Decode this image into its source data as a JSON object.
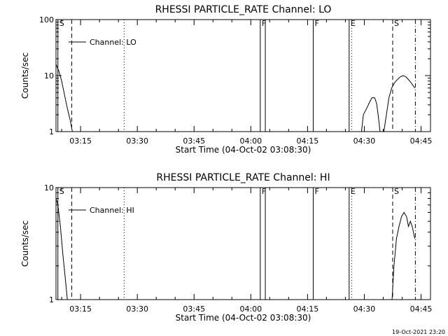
{
  "footer": {
    "timestamp": "19-Oct-2021 23:20"
  },
  "chart_data": [
    {
      "type": "line",
      "title": "RHESSI PARTICLE_RATE Channel: LO",
      "xlabel": "Start Time (04-Oct-02 03:08:30)",
      "ylabel": "Counts/sec",
      "y_scale": "log",
      "ylim": [
        1,
        100
      ],
      "y_ticks": [
        1,
        10,
        100
      ],
      "y_tick_labels": [
        "1",
        "10",
        "100"
      ],
      "xlim": [
        "03:08:30",
        "04:47:30"
      ],
      "x_ticks": [
        "03:15",
        "03:30",
        "03:45",
        "04:00",
        "04:15",
        "04:30",
        "04:45"
      ],
      "legend": {
        "label": "Channel: LO",
        "placement": "top-left"
      },
      "grid": false,
      "markers": [
        {
          "label": "S",
          "time": "03:09:00",
          "style": "solid"
        },
        {
          "label": "",
          "time": "03:12:40",
          "style": "dashed"
        },
        {
          "label": "",
          "time": "03:26:30",
          "style": "dotted"
        },
        {
          "label": "F",
          "time": "04:02:30",
          "style": "solid"
        },
        {
          "label": "",
          "time": "04:03:50",
          "style": "solid"
        },
        {
          "label": "F",
          "time": "04:16:30",
          "style": "solid"
        },
        {
          "label": "E",
          "time": "04:26:00",
          "style": "solid"
        },
        {
          "label": "",
          "time": "04:26:40",
          "style": "dotted"
        },
        {
          "label": "S",
          "time": "04:37:30",
          "style": "dashed"
        },
        {
          "label": "",
          "time": "04:43:30",
          "style": "dashdot"
        }
      ],
      "segments": [
        {
          "times": [
            "03:08:30",
            "03:09:15",
            "03:10:00",
            "03:10:45",
            "03:11:30",
            "03:12:15",
            "03:12:50"
          ],
          "values": [
            16,
            12,
            8,
            4.5,
            2.6,
            1.6,
            1
          ]
        },
        {
          "times": [
            "04:29:15",
            "04:29:45",
            "04:30:30",
            "04:31:15",
            "04:32:00",
            "04:32:45",
            "04:33:15",
            "04:33:40",
            "04:34:10"
          ],
          "values": [
            1.0,
            2.0,
            2.5,
            3.2,
            4.0,
            4.0,
            3.2,
            2.0,
            1.0
          ]
        },
        {
          "times": [
            "04:35:10",
            "04:35:50",
            "04:36:30",
            "04:37:15",
            "04:38:00",
            "04:38:45",
            "04:39:30",
            "04:40:15",
            "04:41:00",
            "04:41:40",
            "04:42:20",
            "04:43:20"
          ],
          "values": [
            1.0,
            2.0,
            4.0,
            6.0,
            7.5,
            8.5,
            9.5,
            10.0,
            9.5,
            8.5,
            7.5,
            6.0
          ]
        }
      ]
    },
    {
      "type": "line",
      "title": "RHESSI PARTICLE_RATE Channel: HI",
      "xlabel": "Start Time (04-Oct-02 03:08:30)",
      "ylabel": "Counts/sec",
      "y_scale": "log",
      "ylim": [
        1,
        10
      ],
      "y_ticks": [
        1,
        10
      ],
      "y_tick_labels": [
        "1",
        "10"
      ],
      "xlim": [
        "03:08:30",
        "04:47:30"
      ],
      "x_ticks": [
        "03:15",
        "03:30",
        "03:45",
        "04:00",
        "04:15",
        "04:30",
        "04:45"
      ],
      "legend": {
        "label": "Channel: HI",
        "placement": "top-left"
      },
      "grid": false,
      "markers": [
        {
          "label": "S",
          "time": "03:09:00",
          "style": "solid"
        },
        {
          "label": "",
          "time": "03:12:40",
          "style": "dashed"
        },
        {
          "label": "",
          "time": "03:26:30",
          "style": "dotted"
        },
        {
          "label": "F",
          "time": "04:02:30",
          "style": "solid"
        },
        {
          "label": "",
          "time": "04:03:50",
          "style": "solid"
        },
        {
          "label": "F",
          "time": "04:16:30",
          "style": "solid"
        },
        {
          "label": "E",
          "time": "04:26:00",
          "style": "solid"
        },
        {
          "label": "",
          "time": "04:26:40",
          "style": "dotted"
        },
        {
          "label": "S",
          "time": "04:37:30",
          "style": "dashed"
        },
        {
          "label": "",
          "time": "04:43:30",
          "style": "dashdot"
        }
      ],
      "segments": [
        {
          "times": [
            "03:08:30",
            "03:09:00",
            "03:09:40",
            "03:10:20",
            "03:11:00",
            "03:11:30"
          ],
          "values": [
            8,
            7,
            4.5,
            2.5,
            1.5,
            1
          ]
        },
        {
          "times": [
            "04:37:20",
            "04:37:50",
            "04:38:30",
            "04:39:10",
            "04:39:50",
            "04:40:30",
            "04:41:10",
            "04:41:40",
            "04:42:10",
            "04:42:40",
            "04:43:20"
          ],
          "values": [
            1.0,
            2.0,
            3.5,
            4.5,
            5.5,
            6.0,
            5.5,
            4.5,
            5.0,
            4.5,
            3.5
          ]
        }
      ]
    }
  ]
}
